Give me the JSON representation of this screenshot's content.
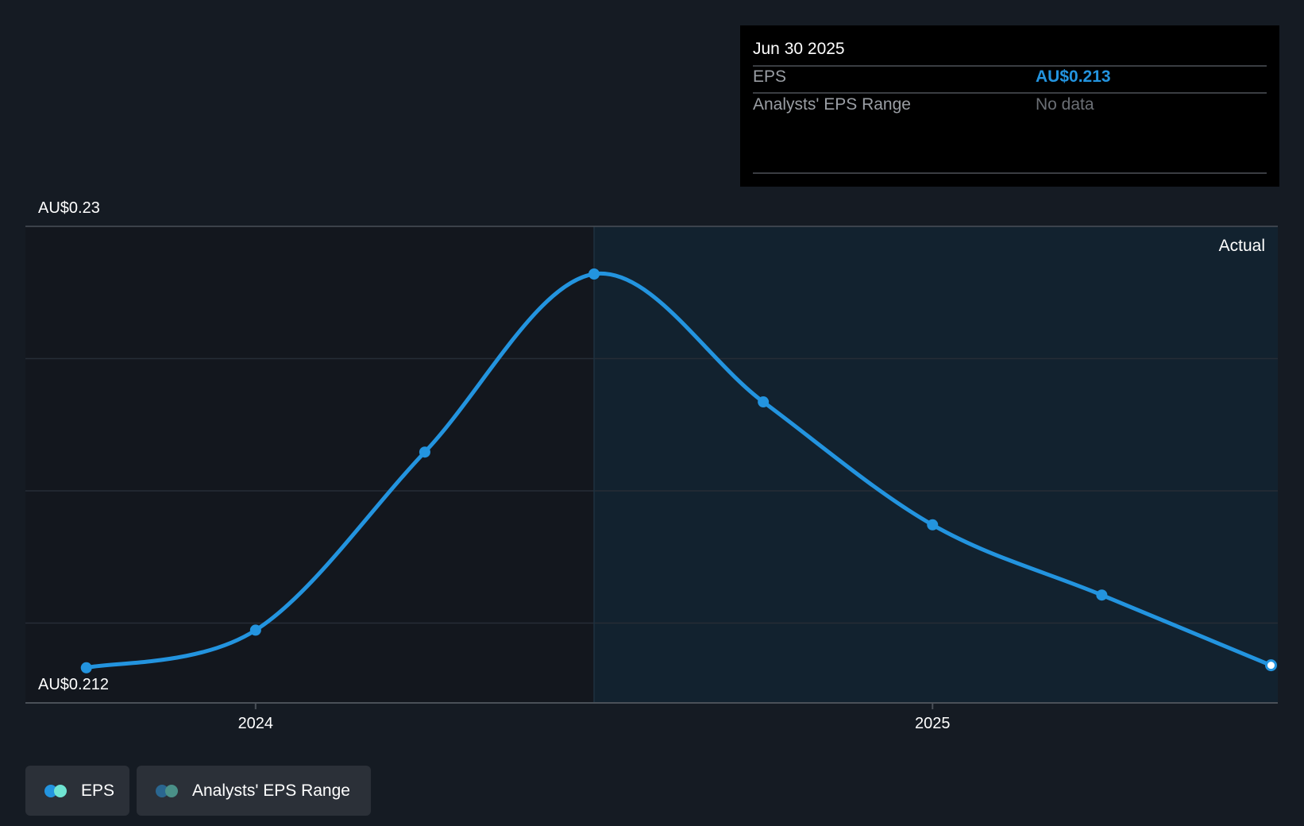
{
  "chart_data": {
    "type": "line",
    "title": "",
    "xlabel": "",
    "ylabel": "",
    "x": [
      "2023-09-30",
      "2023-12-31",
      "2024-03-31",
      "2024-06-30",
      "2024-09-30",
      "2024-12-31",
      "2025-03-31",
      "2025-06-30"
    ],
    "x_decimal": [
      2023.75,
      2024.0,
      2024.25,
      2024.5,
      2024.75,
      2025.0,
      2025.25,
      2025.5
    ],
    "series": [
      {
        "name": "EPS",
        "color": "#2394df",
        "values": [
          0.2124,
          0.2139,
          0.221,
          0.2281,
          0.223,
          0.2181,
          0.2153,
          0.2125
        ]
      }
    ],
    "ylim": [
      0.211,
      0.23
    ],
    "y_labels": {
      "top": "AU$0.23",
      "bottom": "AU$0.212"
    },
    "x_ticks": [
      {
        "label": "2024",
        "value": 2024.0
      },
      {
        "label": "2025",
        "value": 2025.0
      }
    ],
    "xlim": [
      2023.66,
      2025.51
    ],
    "actual_start": 2024.5,
    "region_label": "Actual",
    "grid": true,
    "legend_placement": "bottom-left"
  },
  "tooltip": {
    "date": "Jun 30 2025",
    "rows": [
      {
        "label": "EPS",
        "value": "AU$0.213"
      },
      {
        "label": "Analysts' EPS Range",
        "value": "No data"
      }
    ]
  },
  "legend": [
    {
      "label": "EPS",
      "colors": [
        "#2394df",
        "#6fe4d2"
      ]
    },
    {
      "label": "Analysts' EPS Range",
      "colors": [
        "#2a6690",
        "#4a9088"
      ]
    }
  ]
}
